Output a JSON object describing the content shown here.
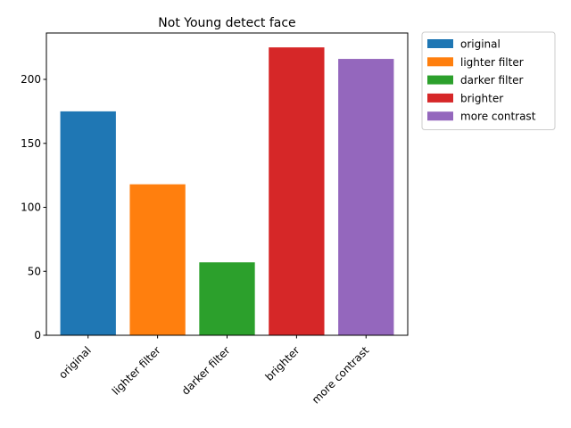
{
  "chart_data": {
    "type": "bar",
    "title": "Not Young detect face",
    "xlabel": "",
    "ylabel": "",
    "categories": [
      "original",
      "lighter filter",
      "darker filter",
      "brighter",
      "more contrast"
    ],
    "values": [
      175,
      118,
      57,
      225,
      216
    ],
    "colors": [
      "#1f77b4",
      "#ff7f0e",
      "#2ca02c",
      "#d62728",
      "#9467bd"
    ],
    "ylim": [
      0,
      236.25
    ],
    "yticks": [
      0,
      50,
      100,
      150,
      200
    ],
    "grid": false,
    "legend": {
      "placement": "outside-right-top",
      "entries": [
        "original",
        "lighter filter",
        "darker filter",
        "brighter",
        "more contrast"
      ]
    }
  }
}
